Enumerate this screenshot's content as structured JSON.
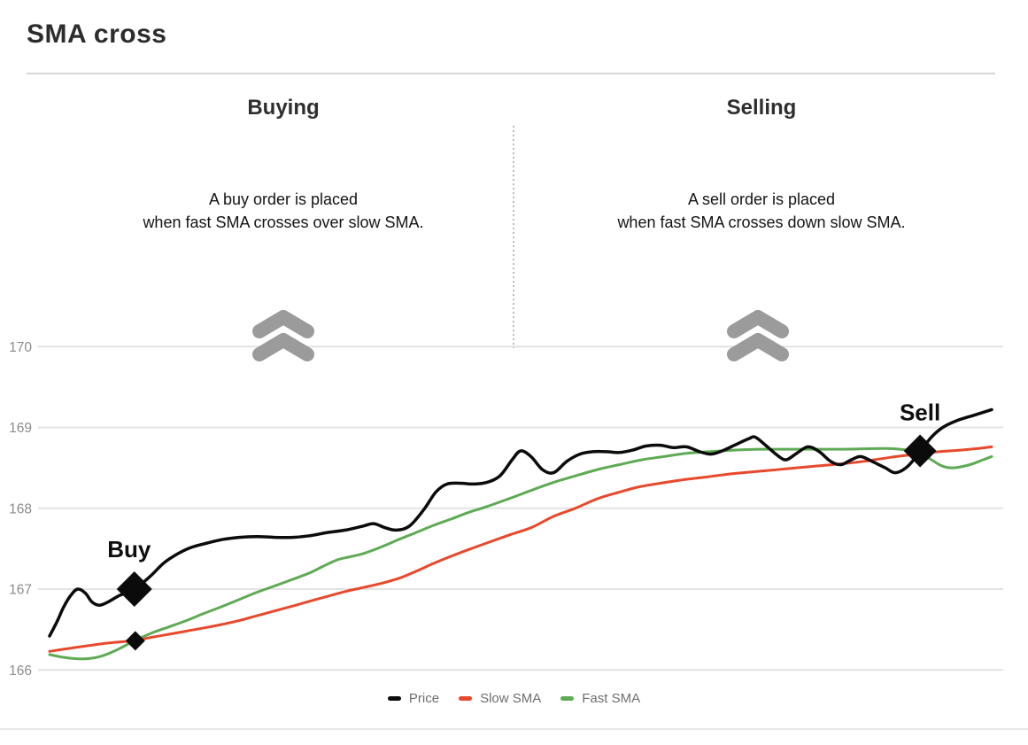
{
  "page": {
    "title": "SMA cross"
  },
  "sections": {
    "buying": {
      "heading": "Buying",
      "description_line1": "A buy order is placed",
      "description_line2": "when fast SMA crosses over slow SMA.",
      "icon": "double-chevron-up-icon"
    },
    "selling": {
      "heading": "Selling",
      "description_line1": "A sell order is placed",
      "description_line2": "when fast SMA crosses down slow SMA.",
      "icon": "double-chevron-up-icon"
    }
  },
  "colors": {
    "price": "#0b0b0b",
    "slow_sma": "#e8492c",
    "fast_sma": "#5faa55",
    "grid": "#e3e3e3",
    "tick_label": "#8c8c8c",
    "marker": "#0b0b0b"
  },
  "chart_data": {
    "type": "line",
    "title": "",
    "xlabel": "",
    "ylabel": "",
    "xlim": [
      0,
      100
    ],
    "ylim": [
      165.75,
      170.35
    ],
    "yticks": [
      166,
      167,
      168,
      169,
      170
    ],
    "grid": true,
    "grid_color": "#e3e3e3",
    "tick_color": "#8c8c8c",
    "marker_color": "#0b0b0b",
    "legend": {
      "position": "bottom",
      "entries": [
        {
          "label": "Price",
          "color": "#0b0b0b"
        },
        {
          "label": "Slow SMA",
          "color": "#e8492c"
        },
        {
          "label": "Fast SMA",
          "color": "#5faa55"
        }
      ]
    },
    "series": [
      {
        "name": "Fast SMA",
        "color": "#5faa55",
        "width": 3,
        "points": [
          [
            0,
            166.19
          ],
          [
            1.3,
            166.16
          ],
          [
            2.7,
            166.14
          ],
          [
            4.1,
            166.14
          ],
          [
            5.5,
            166.17
          ],
          [
            7,
            166.24
          ],
          [
            9,
            166.36
          ],
          [
            10.7,
            166.45
          ],
          [
            12.6,
            166.53
          ],
          [
            14.5,
            166.61
          ],
          [
            16.4,
            166.7
          ],
          [
            18.2,
            166.78
          ],
          [
            20.1,
            166.87
          ],
          [
            22,
            166.96
          ],
          [
            23.9,
            167.04
          ],
          [
            25.8,
            167.12
          ],
          [
            27.6,
            167.2
          ],
          [
            29,
            167.28
          ],
          [
            30.5,
            167.36
          ],
          [
            31.9,
            167.4
          ],
          [
            33.3,
            167.44
          ],
          [
            35.2,
            167.52
          ],
          [
            37,
            167.61
          ],
          [
            38.9,
            167.7
          ],
          [
            40.8,
            167.79
          ],
          [
            42.7,
            167.87
          ],
          [
            44.5,
            167.95
          ],
          [
            46.4,
            168.02
          ],
          [
            48.8,
            168.12
          ],
          [
            51.1,
            168.22
          ],
          [
            53.5,
            168.32
          ],
          [
            55.8,
            168.4
          ],
          [
            58.2,
            168.48
          ],
          [
            60.5,
            168.54
          ],
          [
            62.9,
            168.6
          ],
          [
            65.2,
            168.64
          ],
          [
            67.6,
            168.68
          ],
          [
            69.9,
            168.7
          ],
          [
            72.7,
            168.72
          ],
          [
            75.6,
            168.73
          ],
          [
            79.3,
            168.73
          ],
          [
            84,
            168.73
          ],
          [
            88.7,
            168.74
          ],
          [
            91.1,
            168.72
          ],
          [
            92.4,
            168.69
          ],
          [
            93.6,
            168.6
          ],
          [
            94.8,
            168.52
          ],
          [
            96,
            168.5
          ],
          [
            97.7,
            168.54
          ],
          [
            99.1,
            168.6
          ],
          [
            100,
            168.64
          ]
        ]
      },
      {
        "name": "Slow SMA",
        "color": "#e8492c",
        "width": 3,
        "points": [
          [
            0,
            166.23
          ],
          [
            2.3,
            166.27
          ],
          [
            4.1,
            166.3
          ],
          [
            6,
            166.33
          ],
          [
            7.9,
            166.35
          ],
          [
            9,
            166.36
          ],
          [
            10.7,
            166.4
          ],
          [
            12.6,
            166.44
          ],
          [
            14.5,
            166.48
          ],
          [
            16.4,
            166.52
          ],
          [
            18.2,
            166.56
          ],
          [
            20.1,
            166.61
          ],
          [
            22,
            166.67
          ],
          [
            23.9,
            166.73
          ],
          [
            25.8,
            166.79
          ],
          [
            27.6,
            166.85
          ],
          [
            29.5,
            166.91
          ],
          [
            31.4,
            166.97
          ],
          [
            33.3,
            167.02
          ],
          [
            35.2,
            167.07
          ],
          [
            37,
            167.13
          ],
          [
            38.9,
            167.22
          ],
          [
            40.8,
            167.32
          ],
          [
            42.7,
            167.41
          ],
          [
            44.5,
            167.49
          ],
          [
            46.4,
            167.57
          ],
          [
            48.8,
            167.67
          ],
          [
            51.1,
            167.76
          ],
          [
            53.5,
            167.9
          ],
          [
            55.8,
            168
          ],
          [
            58.2,
            168.12
          ],
          [
            60.5,
            168.2
          ],
          [
            62.4,
            168.26
          ],
          [
            64.3,
            168.3
          ],
          [
            67.1,
            168.35
          ],
          [
            69.9,
            168.39
          ],
          [
            72.7,
            168.43
          ],
          [
            75.6,
            168.46
          ],
          [
            78.4,
            168.49
          ],
          [
            81.2,
            168.52
          ],
          [
            84,
            168.55
          ],
          [
            86.4,
            168.58
          ],
          [
            88.7,
            168.62
          ],
          [
            90.6,
            168.65
          ],
          [
            92.4,
            168.67
          ],
          [
            94.4,
            168.7
          ],
          [
            96.7,
            168.72
          ],
          [
            98.6,
            168.74
          ],
          [
            100,
            168.76
          ]
        ]
      },
      {
        "name": "Price",
        "color": "#0b0b0b",
        "width": 3.5,
        "points": [
          [
            0,
            166.42
          ],
          [
            0.8,
            166.6
          ],
          [
            1.5,
            166.78
          ],
          [
            2.3,
            166.93
          ],
          [
            3,
            167
          ],
          [
            3.8,
            166.95
          ],
          [
            4.5,
            166.84
          ],
          [
            5.3,
            166.8
          ],
          [
            6.2,
            166.84
          ],
          [
            7.4,
            166.92
          ],
          [
            9,
            167
          ],
          [
            10.7,
            167.16
          ],
          [
            12.1,
            167.32
          ],
          [
            13.5,
            167.43
          ],
          [
            14.9,
            167.51
          ],
          [
            16.4,
            167.56
          ],
          [
            18.2,
            167.61
          ],
          [
            20.1,
            167.64
          ],
          [
            22,
            167.65
          ],
          [
            23.9,
            167.64
          ],
          [
            25.8,
            167.64
          ],
          [
            27.6,
            167.66
          ],
          [
            29.5,
            167.7
          ],
          [
            31.4,
            167.73
          ],
          [
            33.3,
            167.78
          ],
          [
            34.4,
            167.81
          ],
          [
            35.6,
            167.76
          ],
          [
            36.8,
            167.73
          ],
          [
            38.2,
            167.78
          ],
          [
            39.7,
            167.98
          ],
          [
            41,
            168.2
          ],
          [
            42.2,
            168.3
          ],
          [
            43.6,
            168.31
          ],
          [
            45,
            168.3
          ],
          [
            46.4,
            168.32
          ],
          [
            47.8,
            168.4
          ],
          [
            49.1,
            168.6
          ],
          [
            50,
            168.71
          ],
          [
            51.1,
            168.64
          ],
          [
            52.3,
            168.48
          ],
          [
            53.5,
            168.44
          ],
          [
            54.9,
            168.58
          ],
          [
            56.3,
            168.67
          ],
          [
            57.7,
            168.7
          ],
          [
            59.1,
            168.7
          ],
          [
            60.5,
            168.69
          ],
          [
            61.9,
            168.72
          ],
          [
            63.3,
            168.77
          ],
          [
            64.8,
            168.78
          ],
          [
            66.2,
            168.75
          ],
          [
            67.6,
            168.76
          ],
          [
            69,
            168.7
          ],
          [
            70.2,
            168.67
          ],
          [
            71.4,
            168.71
          ],
          [
            72.7,
            168.78
          ],
          [
            74.2,
            168.86
          ],
          [
            74.9,
            168.88
          ],
          [
            76,
            168.78
          ],
          [
            77.3,
            168.65
          ],
          [
            78.2,
            168.6
          ],
          [
            79.3,
            168.68
          ],
          [
            80.5,
            168.76
          ],
          [
            81.7,
            168.7
          ],
          [
            82.9,
            168.58
          ],
          [
            84,
            168.54
          ],
          [
            85.1,
            168.6
          ],
          [
            86.1,
            168.64
          ],
          [
            87.3,
            168.58
          ],
          [
            88.7,
            168.5
          ],
          [
            89.8,
            168.44
          ],
          [
            91.1,
            168.52
          ],
          [
            92.4,
            168.7
          ],
          [
            93.6,
            168.88
          ],
          [
            94.8,
            169
          ],
          [
            96.2,
            169.08
          ],
          [
            98.1,
            169.15
          ],
          [
            100,
            169.22
          ]
        ]
      }
    ],
    "markers": [
      {
        "label": "Buy",
        "t": 9,
        "value": 167,
        "shape": "diamond",
        "size": 40,
        "label_dx": -6
      },
      {
        "label": "",
        "t": 9.1,
        "value": 166.36,
        "shape": "diamond",
        "size": 22,
        "label_dx": 0
      },
      {
        "label": "Sell",
        "t": 92.4,
        "value": 168.71,
        "shape": "diamond",
        "size": 37,
        "label_dx": 0
      }
    ]
  }
}
